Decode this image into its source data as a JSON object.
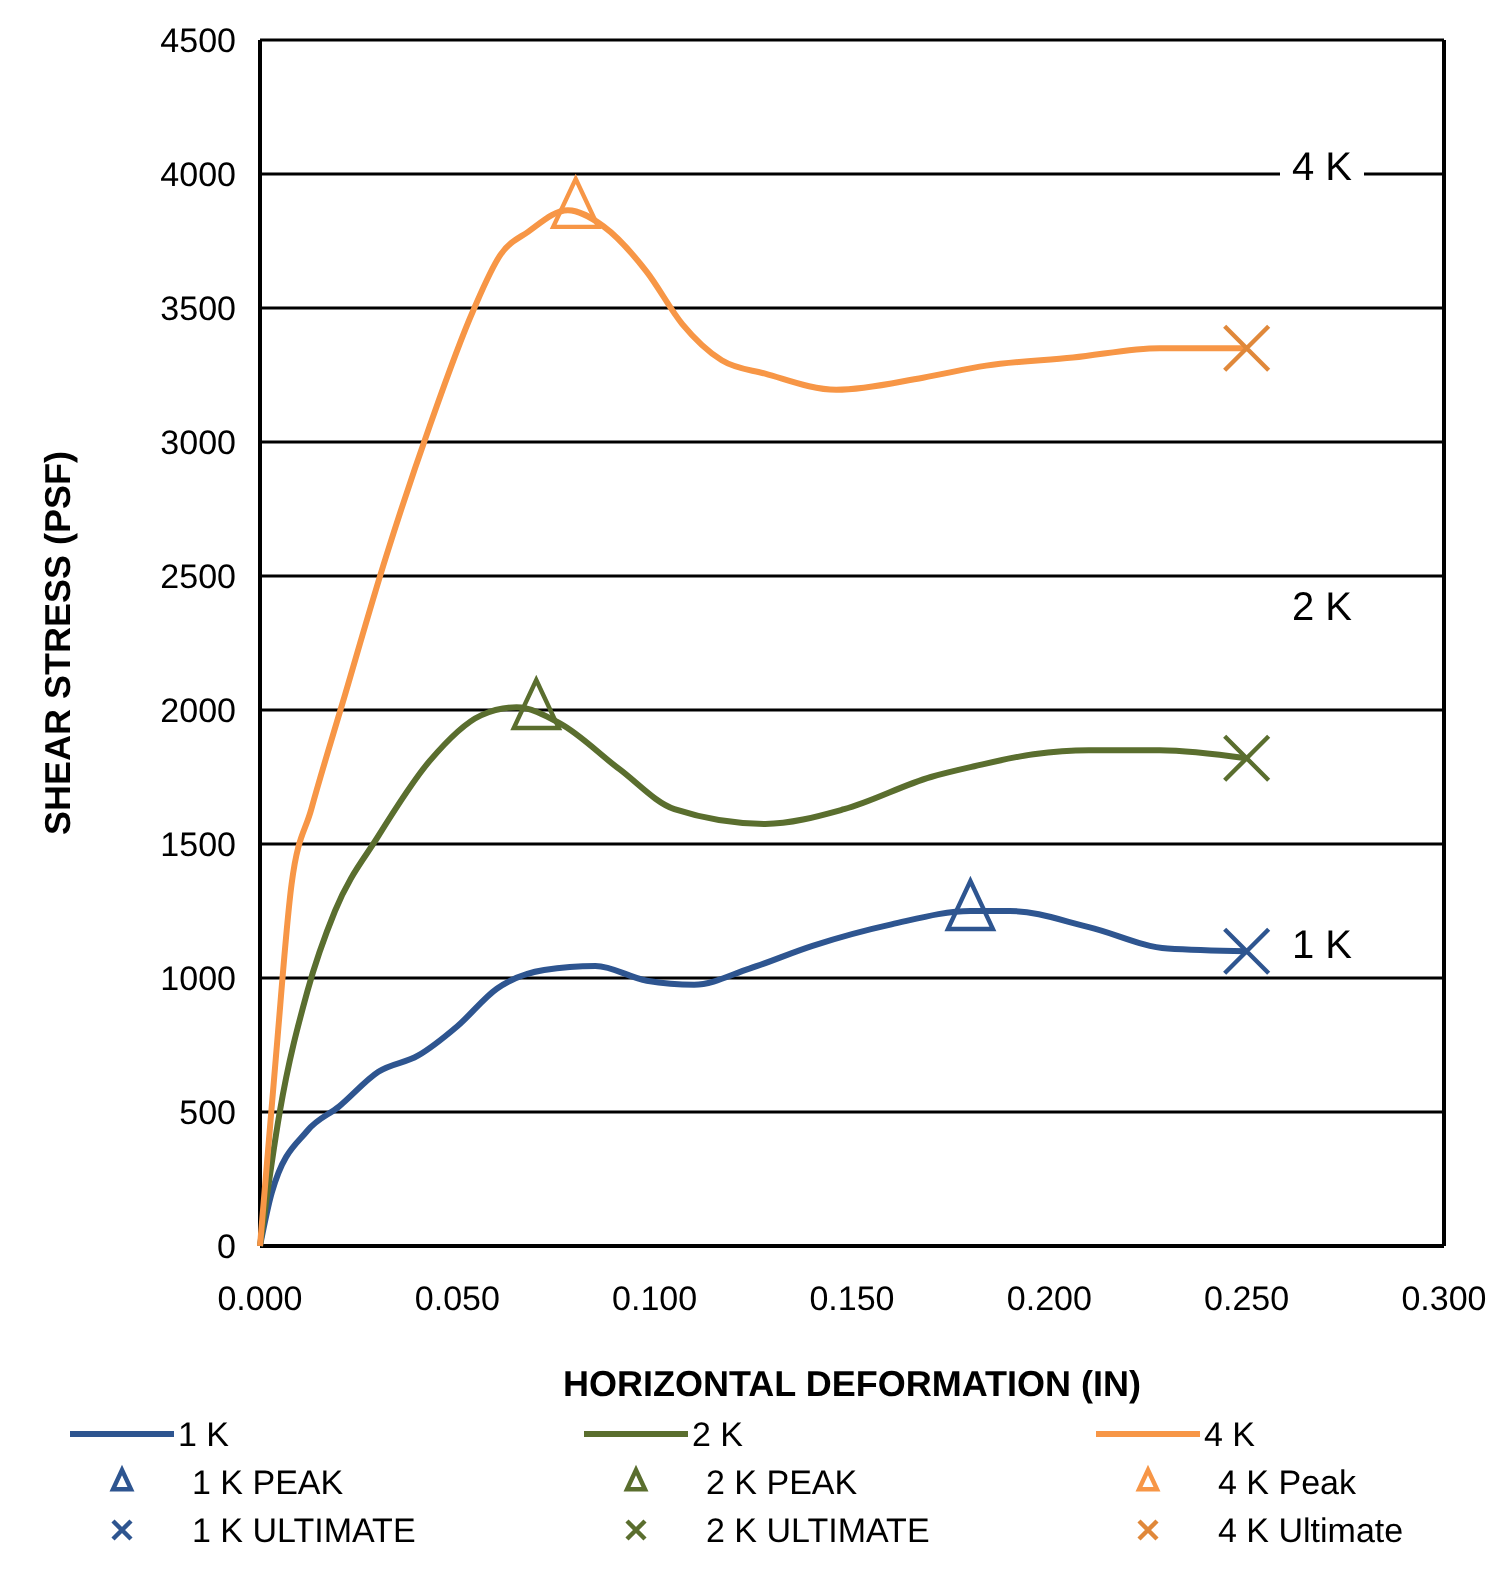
{
  "chart_data": {
    "type": "line",
    "xlabel": "HORIZONTAL DEFORMATION (IN)",
    "ylabel": "SHEAR STRESS (PSF)",
    "xlim": [
      0,
      0.3
    ],
    "xticks": [
      {
        "value": 0,
        "label": "0.000"
      },
      {
        "value": 0.05,
        "label": "0.050"
      },
      {
        "value": 0.1,
        "label": "0.100"
      },
      {
        "value": 0.15,
        "label": "0.150"
      },
      {
        "value": 0.2,
        "label": "0.200"
      },
      {
        "value": 0.25,
        "label": "0.250"
      },
      {
        "value": 0.3,
        "label": "0.300"
      }
    ],
    "ylim": [
      0,
      4500
    ],
    "yticks": [
      0,
      500,
      1000,
      1500,
      2000,
      2500,
      3000,
      3500,
      4000,
      4500
    ],
    "grid": "y",
    "legend": "bottom",
    "line_style": "solid",
    "series": [
      {
        "name": "1 K",
        "marker": "none",
        "color": "#2e5590",
        "x": [
          0,
          0.003,
          0.012,
          0.02,
          0.03,
          0.04,
          0.05,
          0.06,
          0.072,
          0.085,
          0.098,
          0.11,
          0.124,
          0.14,
          0.16,
          0.18,
          0.19,
          0.21,
          0.23,
          0.25
        ],
        "values": [
          0,
          200,
          430,
          520,
          650,
          710,
          820,
          960,
          1030,
          1045,
          990,
          975,
          1035,
          1120,
          1200,
          1250,
          1250,
          1190,
          1110,
          1100
        ]
      },
      {
        "name": "2 K",
        "marker": "none",
        "color": "#5a6e2e",
        "x": [
          0,
          0.005,
          0.012,
          0.019,
          0.03,
          0.043,
          0.056,
          0.065,
          0.076,
          0.091,
          0.105,
          0.128,
          0.148,
          0.17,
          0.181,
          0.196,
          0.21,
          0.228,
          0.25
        ],
        "values": [
          0,
          500,
          950,
          1250,
          1530,
          1810,
          1980,
          2010,
          1950,
          1780,
          1630,
          1575,
          1630,
          1750,
          1790,
          1835,
          1850,
          1850,
          1820
        ]
      },
      {
        "name": "4 K",
        "marker": "none",
        "color": "#f79646",
        "x": [
          0,
          0.004,
          0.008,
          0.013,
          0.021,
          0.032,
          0.043,
          0.054,
          0.061,
          0.068,
          0.078,
          0.087,
          0.098,
          0.107,
          0.117,
          0.128,
          0.146,
          0.168,
          0.184,
          0.206,
          0.228,
          0.25
        ],
        "values": [
          0,
          700,
          1350,
          1630,
          2030,
          2575,
          3060,
          3490,
          3700,
          3785,
          3865,
          3805,
          3635,
          3440,
          3305,
          3255,
          3195,
          3240,
          3285,
          3315,
          3350,
          3350
        ]
      },
      {
        "name": "1 K PEAK",
        "type": "scatter",
        "marker": "triangle",
        "color": "#2e5590",
        "x": [
          0.18
        ],
        "values": [
          1250
        ]
      },
      {
        "name": "2 K PEAK",
        "type": "scatter",
        "marker": "triangle",
        "color": "#5a6e2e",
        "x": [
          0.07
        ],
        "values": [
          2000
        ]
      },
      {
        "name": "4 K Peak",
        "type": "scatter",
        "marker": "triangle",
        "color": "#f79646",
        "x": [
          0.08
        ],
        "values": [
          3870
        ]
      },
      {
        "name": "1 K ULTIMATE",
        "type": "scatter",
        "marker": "cross",
        "color": "#2e5590",
        "x": [
          0.25
        ],
        "values": [
          1100
        ]
      },
      {
        "name": "2 K ULTIMATE",
        "type": "scatter",
        "marker": "cross",
        "color": "#5a6e2e",
        "x": [
          0.25
        ],
        "values": [
          1820
        ]
      },
      {
        "name": "4 K Ultimate",
        "type": "scatter",
        "marker": "cross",
        "color": "#e0883a",
        "x": [
          0.25
        ],
        "values": [
          3350
        ]
      }
    ],
    "annotations": [
      "4 K",
      "2 K",
      "1 K"
    ]
  }
}
